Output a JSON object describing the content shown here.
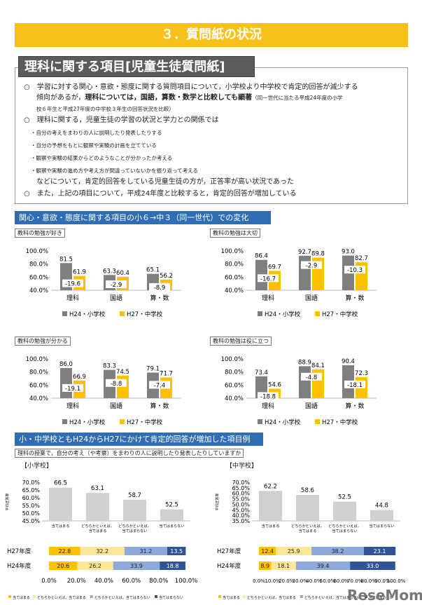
{
  "header": {
    "section_title": "３．質問紙の状況",
    "subtitle": "理科に関する項目[児童生徒質問紙]"
  },
  "summary": {
    "bullet1_line1": "○　学習に対する関心・意欲・態度に関する質問項目について，小学校より中学校で肯定的回答が減少する",
    "bullet1_line2_a": "傾向があるが，",
    "bullet1_line2_b": "理科については，国語，算数・数学と比較しても顕著",
    "bullet1_line2_c": "（同一世代に当たる平成24年度の小学",
    "bullet1_line3": "校６年生と平成27年度の中学校３年生の回答状況を比較）",
    "bullet2": "○　理科に関する，児童生徒の学習の状況と学力との関係では",
    "subitems": [
      "・自分の考えをまわりの人に説明したり発表したりする",
      "・自分の予想をもとに観察や実験の計画を立てている",
      "・観察や実験の結果からどのようなことが分かったか考える",
      "・観察や実験の進め方や考え方が間違っていないかを振り返って考える"
    ],
    "bullet2_end": "などについて，肯定的回答をしている児童生徒の方が，正答率が高い状況であった",
    "bullet3": "○　また，上記の項目について，平成24年度と比較すると，肯定的回答が増加している"
  },
  "section1": {
    "title": "関心・意欲・態度に関する項目の小６→中３（同一世代）での変化"
  },
  "section2": {
    "title": "小・中学校ともH24からH27にかけて肯定的回答が増加した項目例",
    "question": "理科の授業で，自分の考え（や考察）をまわりの人に説明したり発表したりしていますか",
    "elem_label": "【小学校】",
    "jh_label": "【中学校】",
    "y_axis_label": "平均正答率"
  },
  "legend": {
    "h24": "H24・小学校",
    "h27": "H27・中学校"
  },
  "stack_legend": {
    "items": [
      "当てはまる",
      "どちらかといえば，当てはまる",
      "どちらかといえば，当てはまらない",
      "当てはまらない"
    ]
  },
  "watermark": "ReseMom",
  "colors": {
    "gray": "#7f7f7f",
    "yellow": "#ffc000",
    "blue": "#2f6db5",
    "s1": "#ffc000",
    "s2": "#ffe699",
    "s3": "#8ea9db",
    "s4": "#2f5597"
  },
  "chart_data": [
    {
      "type": "bar",
      "title": "教科の勉強が好き",
      "categories": [
        "理科",
        "国語",
        "算・数"
      ],
      "ylim": [
        40,
        100
      ],
      "yticks": [
        "100.0%",
        "80.0%",
        "60.0%",
        "40.0%"
      ],
      "series": [
        {
          "name": "H24・小学校",
          "values": [
            81.5,
            63.3,
            65.1
          ]
        },
        {
          "name": "H27・中学校",
          "values": [
            61.9,
            60.4,
            56.2
          ]
        }
      ],
      "diffs": [
        "-19.6",
        "-2.9",
        "-8.9"
      ]
    },
    {
      "type": "bar",
      "title": "教科の勉強は大切",
      "categories": [
        "理科",
        "国語",
        "算・数"
      ],
      "ylim": [
        40,
        100
      ],
      "yticks": [
        "100.0%",
        "80.0%",
        "60.0%",
        "40.0%"
      ],
      "series": [
        {
          "name": "H24・小学校",
          "values": [
            86.4,
            92.7,
            93.0
          ]
        },
        {
          "name": "H27・中学校",
          "values": [
            69.7,
            89.8,
            82.7
          ]
        }
      ],
      "diffs": [
        "-16.7",
        "-2.9",
        "-10.3"
      ]
    },
    {
      "type": "bar",
      "title": "教科の勉強が分かる",
      "categories": [
        "理科",
        "国語",
        "算・数"
      ],
      "ylim": [
        40,
        100
      ],
      "yticks": [
        "100.0%",
        "80.0%",
        "60.0%",
        "40.0%"
      ],
      "series": [
        {
          "name": "H24・小学校",
          "values": [
            86.0,
            83.3,
            79.1
          ]
        },
        {
          "name": "H27・中学校",
          "values": [
            66.9,
            74.5,
            71.7
          ]
        }
      ],
      "diffs": [
        "-19.1",
        "-8.8",
        "-7.4"
      ]
    },
    {
      "type": "bar",
      "title": "教科の勉強は役に立つ",
      "categories": [
        "理科",
        "国語",
        "算・数"
      ],
      "ylim": [
        40,
        100
      ],
      "yticks": [
        "100.0%",
        "80.0%",
        "60.0%",
        "40.0%"
      ],
      "series": [
        {
          "name": "H24・小学校",
          "values": [
            73.4,
            88.9,
            90.4
          ]
        },
        {
          "name": "H27・中学校",
          "values": [
            54.6,
            84.1,
            72.3
          ]
        }
      ],
      "diffs": [
        "-18.8",
        "-4.8",
        "-18.1"
      ]
    },
    {
      "type": "bar",
      "title": "小学校 平均正答率",
      "categories": [
        "当てはまる",
        "どちらかといえば，当てはまる",
        "どちらかといえば，当てはまらない",
        "当てはまらない"
      ],
      "ylim": [
        45,
        70
      ],
      "yticks": [
        "70.0%",
        "65.0%",
        "60.0%",
        "55.0%",
        "50.0%",
        "45.0%"
      ],
      "values": [
        66.5,
        63.1,
        58.7,
        52.5
      ]
    },
    {
      "type": "bar",
      "title": "中学校 平均正答率",
      "categories": [
        "当てはまる",
        "どちらかといえば，当てはまる",
        "どちらかといえば，当てはまらない",
        "当てはまらない"
      ],
      "ylim": [
        35,
        70
      ],
      "yticks": [
        "70.0%",
        "65.0%",
        "60.0%",
        "55.0%",
        "50.0%",
        "45.0%",
        "40.0%",
        "35.0%"
      ],
      "values": [
        62.2,
        58.6,
        52.5,
        44.8
      ]
    },
    {
      "type": "stacked-bar",
      "title": "小学校 回答割合",
      "categories": [
        "H27年度",
        "H24年度"
      ],
      "xticks": [
        "0.0%",
        "20.0%",
        "40.0%",
        "60.0%",
        "80.0%",
        "100.0%"
      ],
      "rows": [
        [
          22.8,
          32.2,
          31.2,
          13.5
        ],
        [
          20.6,
          26.2,
          33.9,
          18.8
        ]
      ]
    },
    {
      "type": "stacked-bar",
      "title": "中学校 回答割合",
      "categories": [
        "H27年度",
        "H24年度"
      ],
      "xticks": [
        "0.0%",
        "10.0%",
        "20.0%",
        "30.0%",
        "40.0%",
        "50.0%",
        "60.0%",
        "70.0%",
        "80.0%",
        "90.0%",
        "100.0%"
      ],
      "rows": [
        [
          12.4,
          25.9,
          38.2,
          23.1
        ],
        [
          8.9,
          18.1,
          39.4,
          33.0
        ]
      ]
    }
  ]
}
